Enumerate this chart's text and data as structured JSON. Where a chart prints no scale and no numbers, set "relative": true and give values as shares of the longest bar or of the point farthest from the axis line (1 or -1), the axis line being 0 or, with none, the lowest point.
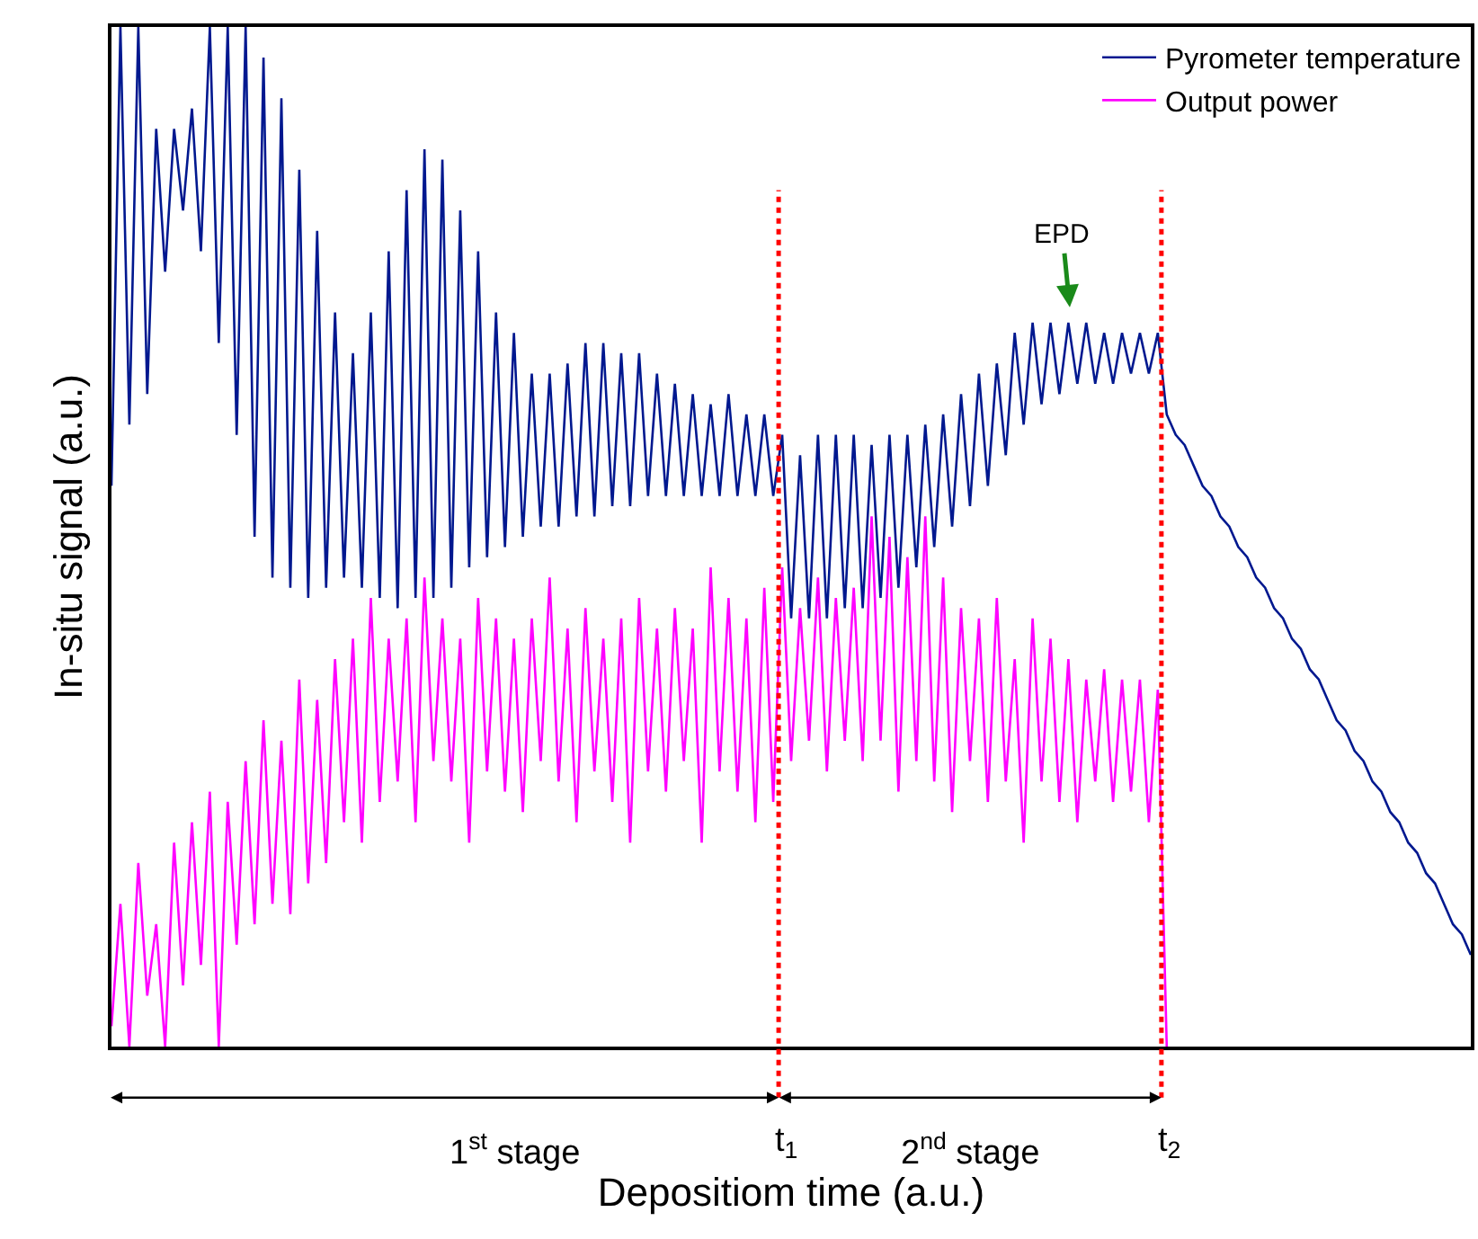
{
  "chart_data": {
    "type": "line",
    "relative": true,
    "xlabel": "Depositiom time (a.u.)",
    "ylabel": "In-situ signal (a.u.)",
    "legend": "top right",
    "categories": [
      null,
      null,
      null,
      null,
      null,
      null,
      null,
      null,
      null,
      null,
      null,
      null,
      null,
      null,
      null,
      null,
      null,
      null,
      null,
      null,
      null,
      null,
      null,
      null,
      null,
      null,
      null,
      null,
      null,
      null,
      null,
      null,
      null,
      null,
      null,
      null,
      null,
      null,
      null,
      null,
      null,
      null,
      null,
      null,
      null,
      null,
      null,
      null,
      null,
      null,
      null,
      null,
      null,
      null,
      null,
      null,
      null,
      null,
      null,
      null,
      null,
      null,
      null,
      null,
      null,
      null,
      null,
      null,
      null,
      null,
      null,
      null,
      null,
      null,
      null,
      null,
      null,
      null,
      null,
      null,
      null,
      null,
      null,
      null,
      null,
      null,
      null,
      null,
      null,
      null,
      null,
      null,
      null,
      null,
      null,
      null,
      null,
      null,
      null,
      null,
      null,
      null,
      null,
      null,
      null,
      null,
      null,
      null,
      null,
      null,
      null,
      null,
      null,
      null,
      null,
      null,
      null,
      null,
      null,
      null,
      null,
      null,
      null,
      null,
      null,
      null,
      null,
      null,
      null,
      null,
      null,
      null,
      null,
      null,
      null,
      null,
      null,
      null,
      null,
      null,
      null,
      null,
      null,
      null,
      null,
      null,
      null,
      null,
      null,
      null,
      null,
      null,
      null
    ],
    "series": [
      {
        "name": "Pyrometer temperature",
        "color": "#00188f",
        "values": [
          0.55,
          1.0,
          0.61,
          1.0,
          0.64,
          0.9,
          0.76,
          0.9,
          0.82,
          0.92,
          0.78,
          1.0,
          0.69,
          1.0,
          0.6,
          1.0,
          0.5,
          0.97,
          0.46,
          0.93,
          0.45,
          0.86,
          0.44,
          0.8,
          0.45,
          0.72,
          0.46,
          0.68,
          0.45,
          0.72,
          0.44,
          0.78,
          0.43,
          0.84,
          0.44,
          0.88,
          0.44,
          0.87,
          0.45,
          0.82,
          0.47,
          0.78,
          0.48,
          0.72,
          0.49,
          0.7,
          0.5,
          0.66,
          0.51,
          0.66,
          0.51,
          0.67,
          0.52,
          0.69,
          0.52,
          0.69,
          0.53,
          0.68,
          0.53,
          0.68,
          0.54,
          0.66,
          0.54,
          0.65,
          0.54,
          0.64,
          0.54,
          0.63,
          0.54,
          0.64,
          0.54,
          0.62,
          0.54,
          0.62,
          0.54,
          0.6,
          0.42,
          0.58,
          0.42,
          0.6,
          0.42,
          0.6,
          0.43,
          0.6,
          0.43,
          0.59,
          0.44,
          0.6,
          0.45,
          0.6,
          0.47,
          0.61,
          0.49,
          0.62,
          0.51,
          0.64,
          0.53,
          0.66,
          0.55,
          0.67,
          0.58,
          0.7,
          0.61,
          0.71,
          0.63,
          0.71,
          0.64,
          0.71,
          0.65,
          0.71,
          0.65,
          0.7,
          0.65,
          0.7,
          0.66,
          0.7,
          0.66,
          0.7,
          0.62,
          0.6,
          0.59,
          0.57,
          0.55,
          0.54,
          0.52,
          0.51,
          0.49,
          0.48,
          0.46,
          0.45,
          0.43,
          0.42,
          0.4,
          0.39,
          0.37,
          0.36,
          0.34,
          0.32,
          0.31,
          0.29,
          0.28,
          0.26,
          0.25,
          0.23,
          0.22,
          0.2,
          0.19,
          0.17,
          0.16,
          0.14,
          0.12,
          0.11,
          0.09
        ]
      },
      {
        "name": "Output power",
        "color": "#ff00ff",
        "values": [
          0.02,
          0.14,
          0.0,
          0.18,
          0.05,
          0.12,
          0.0,
          0.2,
          0.06,
          0.22,
          0.08,
          0.25,
          0.0,
          0.24,
          0.1,
          0.28,
          0.12,
          0.32,
          0.14,
          0.3,
          0.13,
          0.36,
          0.16,
          0.34,
          0.18,
          0.38,
          0.22,
          0.4,
          0.2,
          0.44,
          0.24,
          0.4,
          0.26,
          0.42,
          0.22,
          0.46,
          0.28,
          0.42,
          0.26,
          0.4,
          0.2,
          0.44,
          0.27,
          0.42,
          0.25,
          0.4,
          0.23,
          0.42,
          0.28,
          0.46,
          0.26,
          0.41,
          0.22,
          0.43,
          0.27,
          0.4,
          0.24,
          0.42,
          0.2,
          0.44,
          0.27,
          0.41,
          0.25,
          0.43,
          0.28,
          0.41,
          0.2,
          0.47,
          0.27,
          0.44,
          0.25,
          0.42,
          0.22,
          0.45,
          0.24,
          0.47,
          0.28,
          0.43,
          0.3,
          0.46,
          0.27,
          0.44,
          0.3,
          0.45,
          0.28,
          0.52,
          0.3,
          0.5,
          0.25,
          0.48,
          0.28,
          0.52,
          0.26,
          0.46,
          0.23,
          0.43,
          0.28,
          0.42,
          0.24,
          0.44,
          0.26,
          0.38,
          0.2,
          0.42,
          0.26,
          0.4,
          0.24,
          0.38,
          0.22,
          0.36,
          0.26,
          0.37,
          0.24,
          0.36,
          0.25,
          0.36,
          0.22,
          0.35,
          0.0,
          null,
          null,
          null,
          null,
          null,
          null,
          null,
          null,
          null,
          null,
          null,
          null,
          null,
          null,
          null,
          null,
          null,
          null,
          null,
          null,
          null,
          null,
          null,
          null,
          null,
          null,
          null,
          null,
          null,
          null,
          null,
          null,
          null,
          null
        ]
      }
    ],
    "annotations": [
      "1$^{st}$ stage",
      "t$_{1}$",
      "2$^{nd}$ stage",
      "t$_{2}$",
      "EPD"
    ]
  }
}
